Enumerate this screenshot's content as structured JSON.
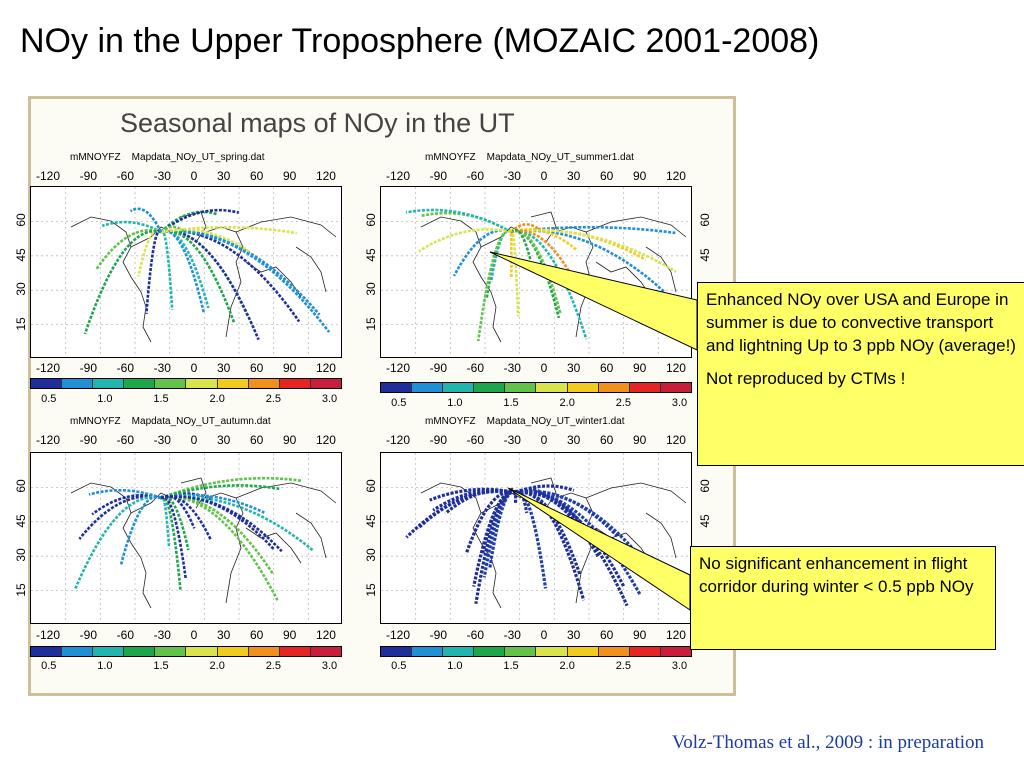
{
  "title": "NOy in the Upper Troposphere (MOZAIC 2001-2008)",
  "figure": {
    "title": "Seasonal maps of NOy in the UT",
    "lon_ticks": [
      "-120",
      "-90",
      "-60",
      "-30",
      "0",
      "30",
      "60",
      "90",
      "120"
    ],
    "lat_ticks": [
      "60",
      "45",
      "30",
      "15"
    ],
    "colorbar_colors": [
      "#1e2f9c",
      "#1f8fd6",
      "#22b5b0",
      "#1ea64a",
      "#63c24a",
      "#d9e34b",
      "#f2cc1d",
      "#f0911d",
      "#e52424",
      "#c81e3c"
    ],
    "colorbar_labels": [
      "0.5",
      "1.0",
      "1.5",
      "2.0",
      "2.5",
      "3.0"
    ],
    "panels": [
      {
        "program": "mMNOYFZ",
        "file": "Mapdata_NOy_UT_spring.dat"
      },
      {
        "program": "mMNOYFZ",
        "file": "Mapdata_NOy_UT_summer1.dat"
      },
      {
        "program": "mMNOYFZ",
        "file": "Mapdata_NOy_UT_autumn.dat"
      },
      {
        "program": "mMNOYFZ",
        "file": "Mapdata_NOy_UT_winter1.dat"
      }
    ]
  },
  "callouts": {
    "summer": {
      "text1": "Enhanced NOy over USA and Europe in summer is due to convective transport and lightning Up to 3 ppb NOy (average!)",
      "text2": "Not reproduced by CTMs !"
    },
    "winter": {
      "text1": "No significant enhancement in flight corridor during winter < 0.5 ppb NOy"
    }
  },
  "citation": "Volz-Thomas et al., 2009 : in preparation"
}
